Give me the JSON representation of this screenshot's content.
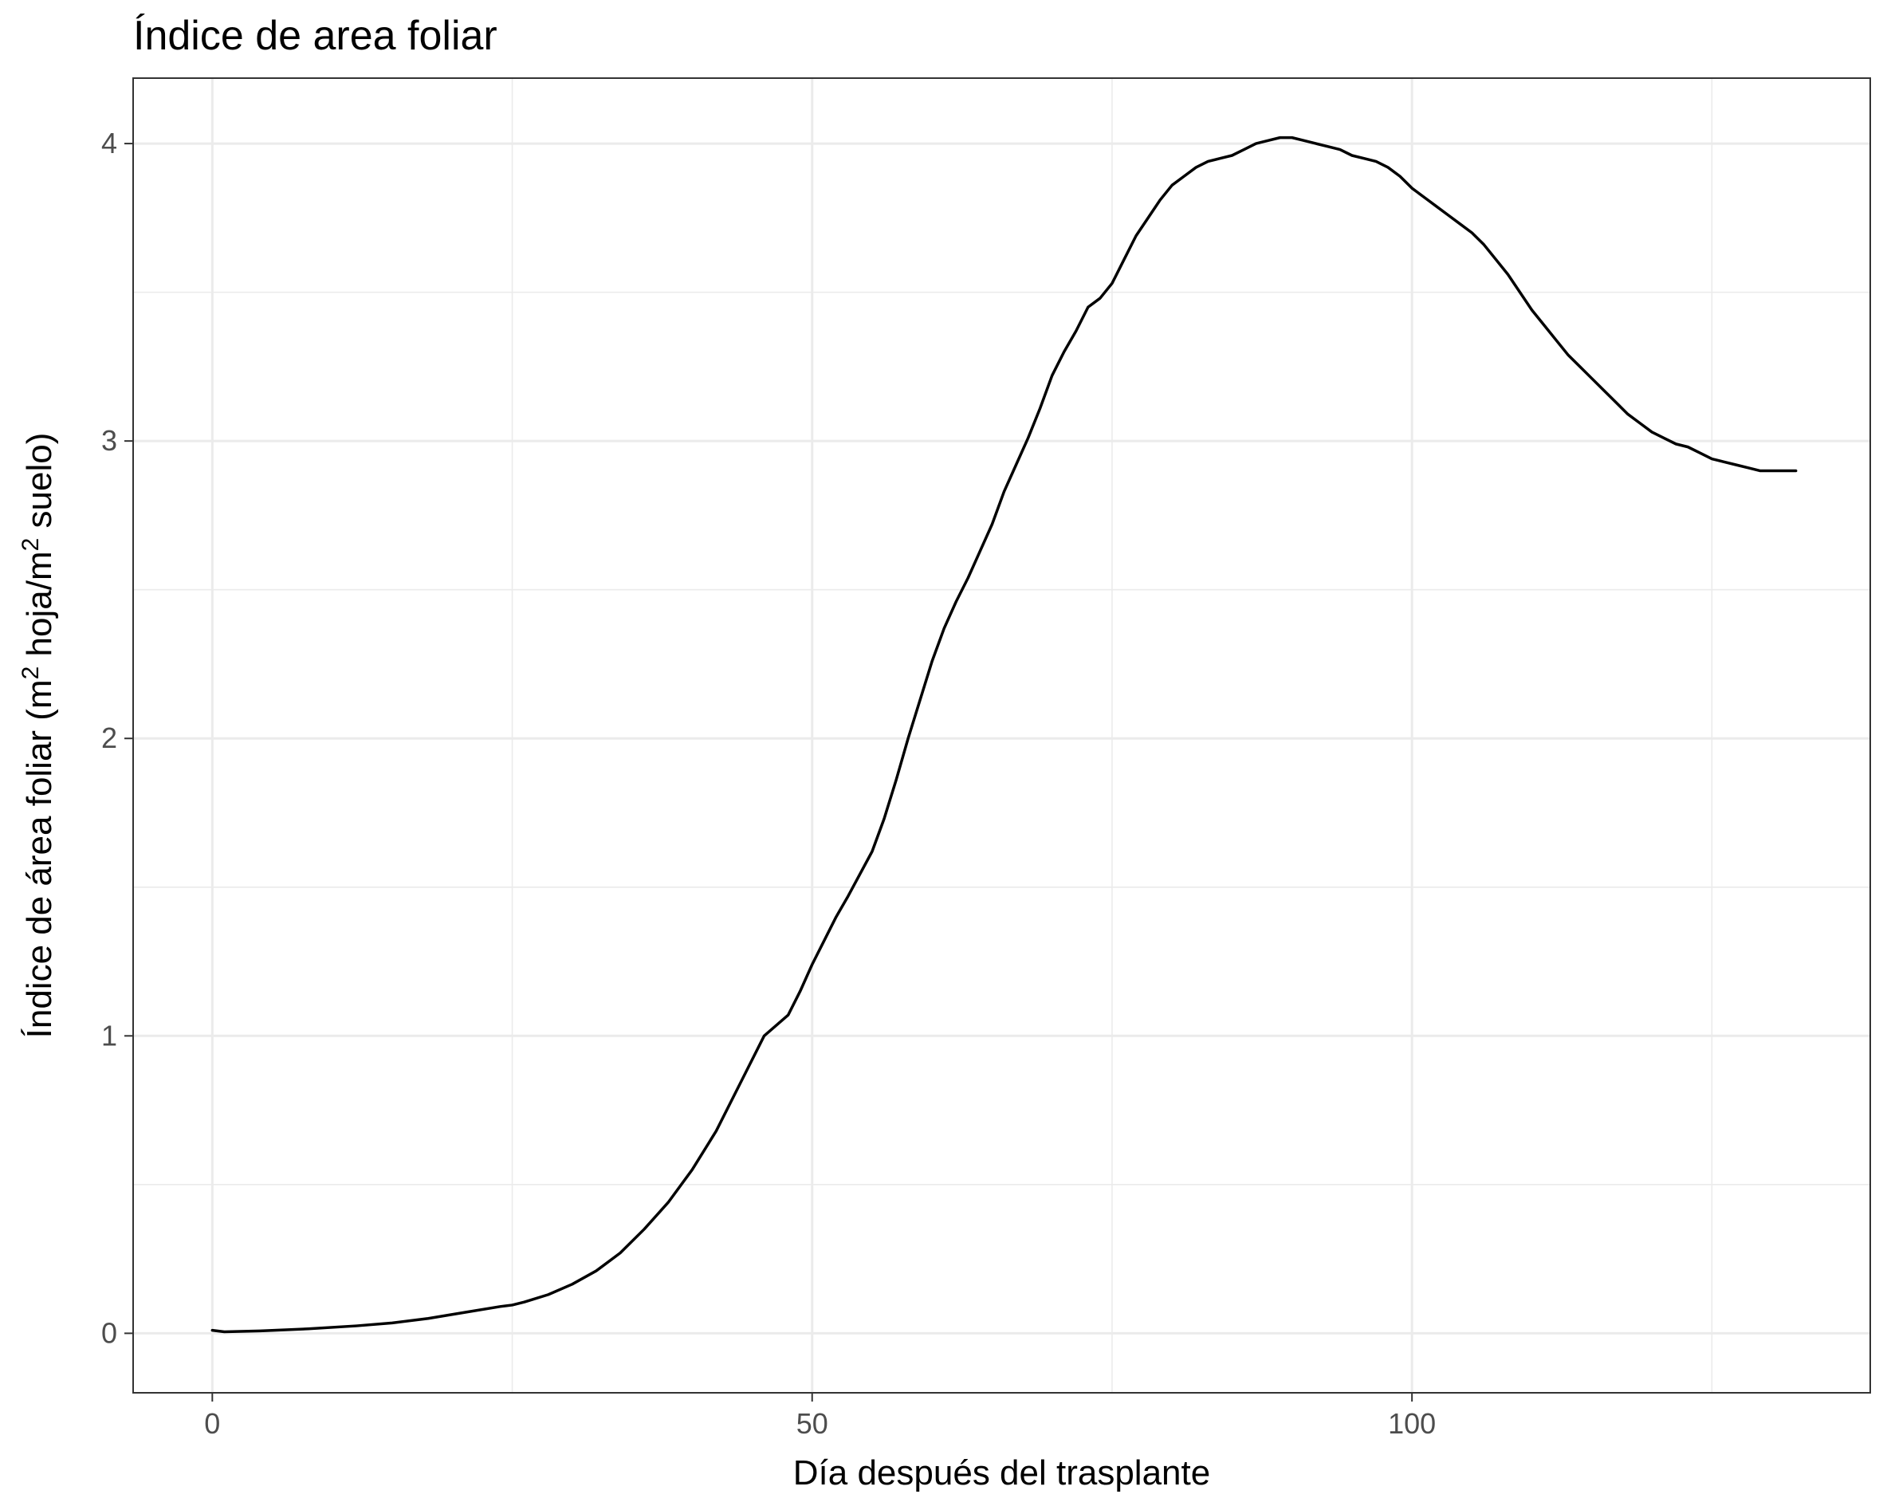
{
  "chart_data": {
    "type": "line",
    "title": "Índice de area foliar",
    "xlabel": "Día después del trasplante",
    "ylabel": {
      "parts": [
        {
          "text": "Índice de área foliar (m",
          "sup": false
        },
        {
          "text": "2",
          "sup": true
        },
        {
          "text": " hoja/m",
          "sup": false
        },
        {
          "text": "2",
          "sup": true
        },
        {
          "text": " suelo)",
          "sup": false
        }
      ]
    },
    "xlim": [
      -6.6,
      138.2
    ],
    "ylim": [
      -0.2,
      4.22
    ],
    "x_major_ticks": [
      0,
      50,
      100
    ],
    "x_minor_ticks": [
      25,
      75,
      125
    ],
    "y_major_ticks": [
      0,
      1,
      2,
      3,
      4
    ],
    "y_minor_ticks": [
      0.5,
      1.5,
      2.5,
      3.5
    ],
    "x_tick_labels": [
      "0",
      "50",
      "100"
    ],
    "y_tick_labels": [
      "0",
      "1",
      "2",
      "3",
      "4"
    ],
    "grid": true,
    "legend": "none",
    "colors": {
      "line": "#000000",
      "grid": "#ebebeb",
      "border": "#333333",
      "tick_text": "#4d4d4d"
    },
    "series": [
      {
        "x": [
          0,
          1,
          4,
          8,
          12,
          15,
          18,
          21,
          24,
          25,
          26,
          28,
          30,
          32,
          34,
          36,
          38,
          40,
          42,
          44,
          46,
          48,
          49,
          50,
          51,
          52,
          53,
          55,
          56,
          57,
          58,
          59,
          60,
          61,
          62,
          63,
          64,
          65,
          66,
          67,
          68,
          69,
          70,
          71,
          72,
          73,
          74,
          75,
          76,
          77,
          78,
          79,
          80,
          81,
          82,
          83,
          84,
          85,
          86,
          87,
          88,
          89,
          90,
          91,
          92,
          93,
          94,
          95,
          96,
          97,
          98,
          99,
          100,
          101,
          102,
          103,
          104,
          105,
          106,
          107,
          108,
          109,
          110,
          111,
          112,
          113,
          114,
          115,
          116,
          117,
          118,
          119,
          120,
          121,
          122,
          123,
          124,
          125,
          126,
          127,
          128,
          129,
          130,
          131,
          132
        ],
        "y": [
          0.01,
          0.005,
          0.008,
          0.015,
          0.025,
          0.035,
          0.05,
          0.07,
          0.09,
          0.095,
          0.105,
          0.13,
          0.165,
          0.21,
          0.27,
          0.35,
          0.44,
          0.55,
          0.68,
          0.84,
          1.0,
          1.07,
          1.15,
          1.24,
          1.32,
          1.4,
          1.47,
          1.62,
          1.73,
          1.86,
          2.0,
          2.13,
          2.26,
          2.37,
          2.46,
          2.54,
          2.63,
          2.72,
          2.83,
          2.92,
          3.01,
          3.11,
          3.22,
          3.3,
          3.37,
          3.45,
          3.48,
          3.53,
          3.61,
          3.69,
          3.75,
          3.81,
          3.86,
          3.89,
          3.92,
          3.94,
          3.95,
          3.96,
          3.98,
          4.0,
          4.01,
          4.02,
          4.02,
          4.01,
          4.0,
          3.99,
          3.98,
          3.96,
          3.95,
          3.94,
          3.92,
          3.89,
          3.85,
          3.82,
          3.79,
          3.76,
          3.73,
          3.7,
          3.66,
          3.61,
          3.56,
          3.5,
          3.44,
          3.39,
          3.34,
          3.29,
          3.25,
          3.21,
          3.17,
          3.13,
          3.09,
          3.06,
          3.03,
          3.01,
          2.99,
          2.98,
          2.96,
          2.94,
          2.93,
          2.92,
          2.91,
          2.9,
          2.9,
          2.9,
          2.9
        ]
      }
    ]
  }
}
